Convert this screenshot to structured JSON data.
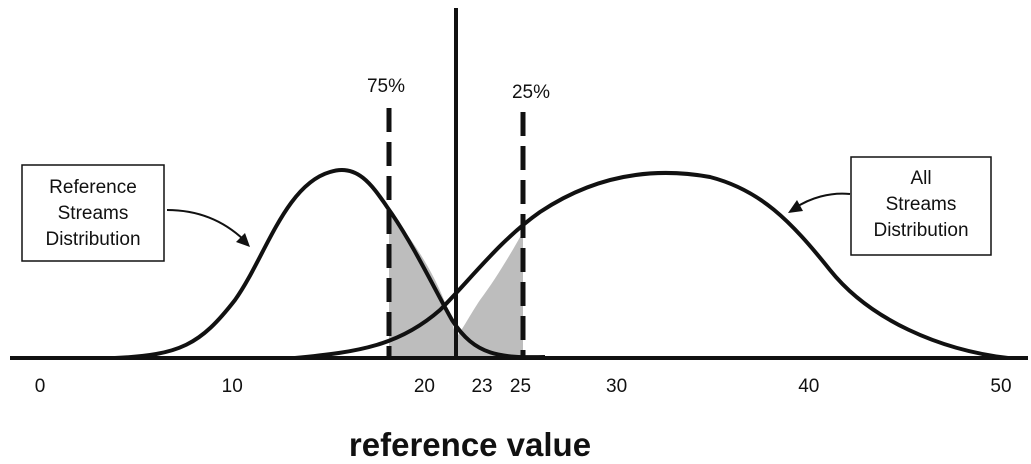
{
  "x_axis": {
    "title": "reference value",
    "ticks": [
      "0",
      "10",
      "20",
      "23",
      "25",
      "30",
      "40",
      "50"
    ]
  },
  "markers": {
    "left_dashed_label": "75%",
    "right_dashed_label": "25%"
  },
  "reference_box": {
    "line1": "Reference",
    "line2": "Streams",
    "line3": "Distribution"
  },
  "all_box": {
    "line1": "All",
    "line2": "Streams",
    "line3": "Distribution"
  },
  "colors": {
    "ink": "#111111",
    "shade": "#bdbdbd"
  }
}
